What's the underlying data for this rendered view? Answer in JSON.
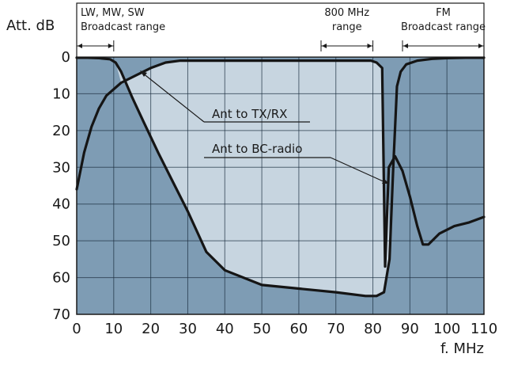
{
  "chart_data": {
    "type": "line",
    "ylabel": "Att. dB",
    "xlabel": "f. MHz",
    "xlim": [
      0,
      110
    ],
    "ylim": [
      0,
      70
    ],
    "y_inverted": true,
    "grid": true,
    "xticks": [
      0,
      10,
      20,
      30,
      40,
      50,
      60,
      70,
      80,
      90,
      100,
      110
    ],
    "yticks": [
      0,
      10,
      20,
      30,
      40,
      50,
      60,
      70
    ],
    "colors": {
      "outer_fill": "#7e9cb4",
      "inner_fill": "#c7d5e0",
      "grid": "#1c2f40",
      "curve": "#151515",
      "frame": "#1a1a1a"
    },
    "bands": [
      {
        "lines": [
          "LW, MW, SW",
          "Broadcast range"
        ],
        "from": 0,
        "to": 10
      },
      {
        "lines": [
          "800 MHz",
          "range"
        ],
        "from": 66,
        "to": 80
      },
      {
        "lines": [
          "FM",
          "Broadcast range"
        ],
        "from": 88,
        "to": 110
      }
    ],
    "series": [
      {
        "name": "Ant to TX/RX",
        "x": [
          0,
          3,
          6,
          9,
          10.5,
          12,
          15,
          18,
          22,
          26,
          30,
          35,
          40,
          50,
          60,
          70,
          78,
          81,
          83,
          84.5,
          85.5,
          86.5,
          87.5,
          89,
          92,
          96,
          100,
          105,
          110
        ],
        "y": [
          0.2,
          0.2,
          0.3,
          0.6,
          1.5,
          4,
          11,
          17.5,
          26,
          34,
          42,
          53,
          58,
          62,
          63,
          64,
          65,
          65,
          64,
          55,
          30,
          8,
          4,
          2,
          1,
          0.5,
          0.3,
          0.2,
          0.2
        ]
      },
      {
        "name": "Ant to BC-radio",
        "x": [
          0,
          2,
          4,
          6,
          8,
          12,
          16,
          20,
          24,
          28,
          30,
          32,
          34,
          36,
          38,
          40,
          44,
          48,
          52,
          54,
          56,
          60,
          64,
          67,
          68,
          70,
          72,
          74,
          75,
          76,
          78,
          79.5,
          81,
          82.5,
          83.3,
          84.3,
          86,
          88,
          90,
          92,
          93.5,
          95,
          98,
          102,
          106,
          110
        ],
        "y": [
          36,
          26,
          19,
          14,
          10.5,
          7,
          5,
          3,
          1.5,
          1,
          1,
          1,
          1,
          1,
          1,
          1,
          1,
          1,
          1,
          1,
          1,
          1,
          1,
          1,
          1,
          1,
          1,
          1,
          1,
          1,
          1,
          1,
          1.5,
          3,
          57,
          30,
          27,
          31,
          38,
          46,
          51,
          51,
          48,
          46,
          45,
          43.5
        ]
      }
    ],
    "annotations": [
      {
        "text": "Ant to TX/RX"
      },
      {
        "text": "Ant to BC-radio"
      }
    ]
  }
}
